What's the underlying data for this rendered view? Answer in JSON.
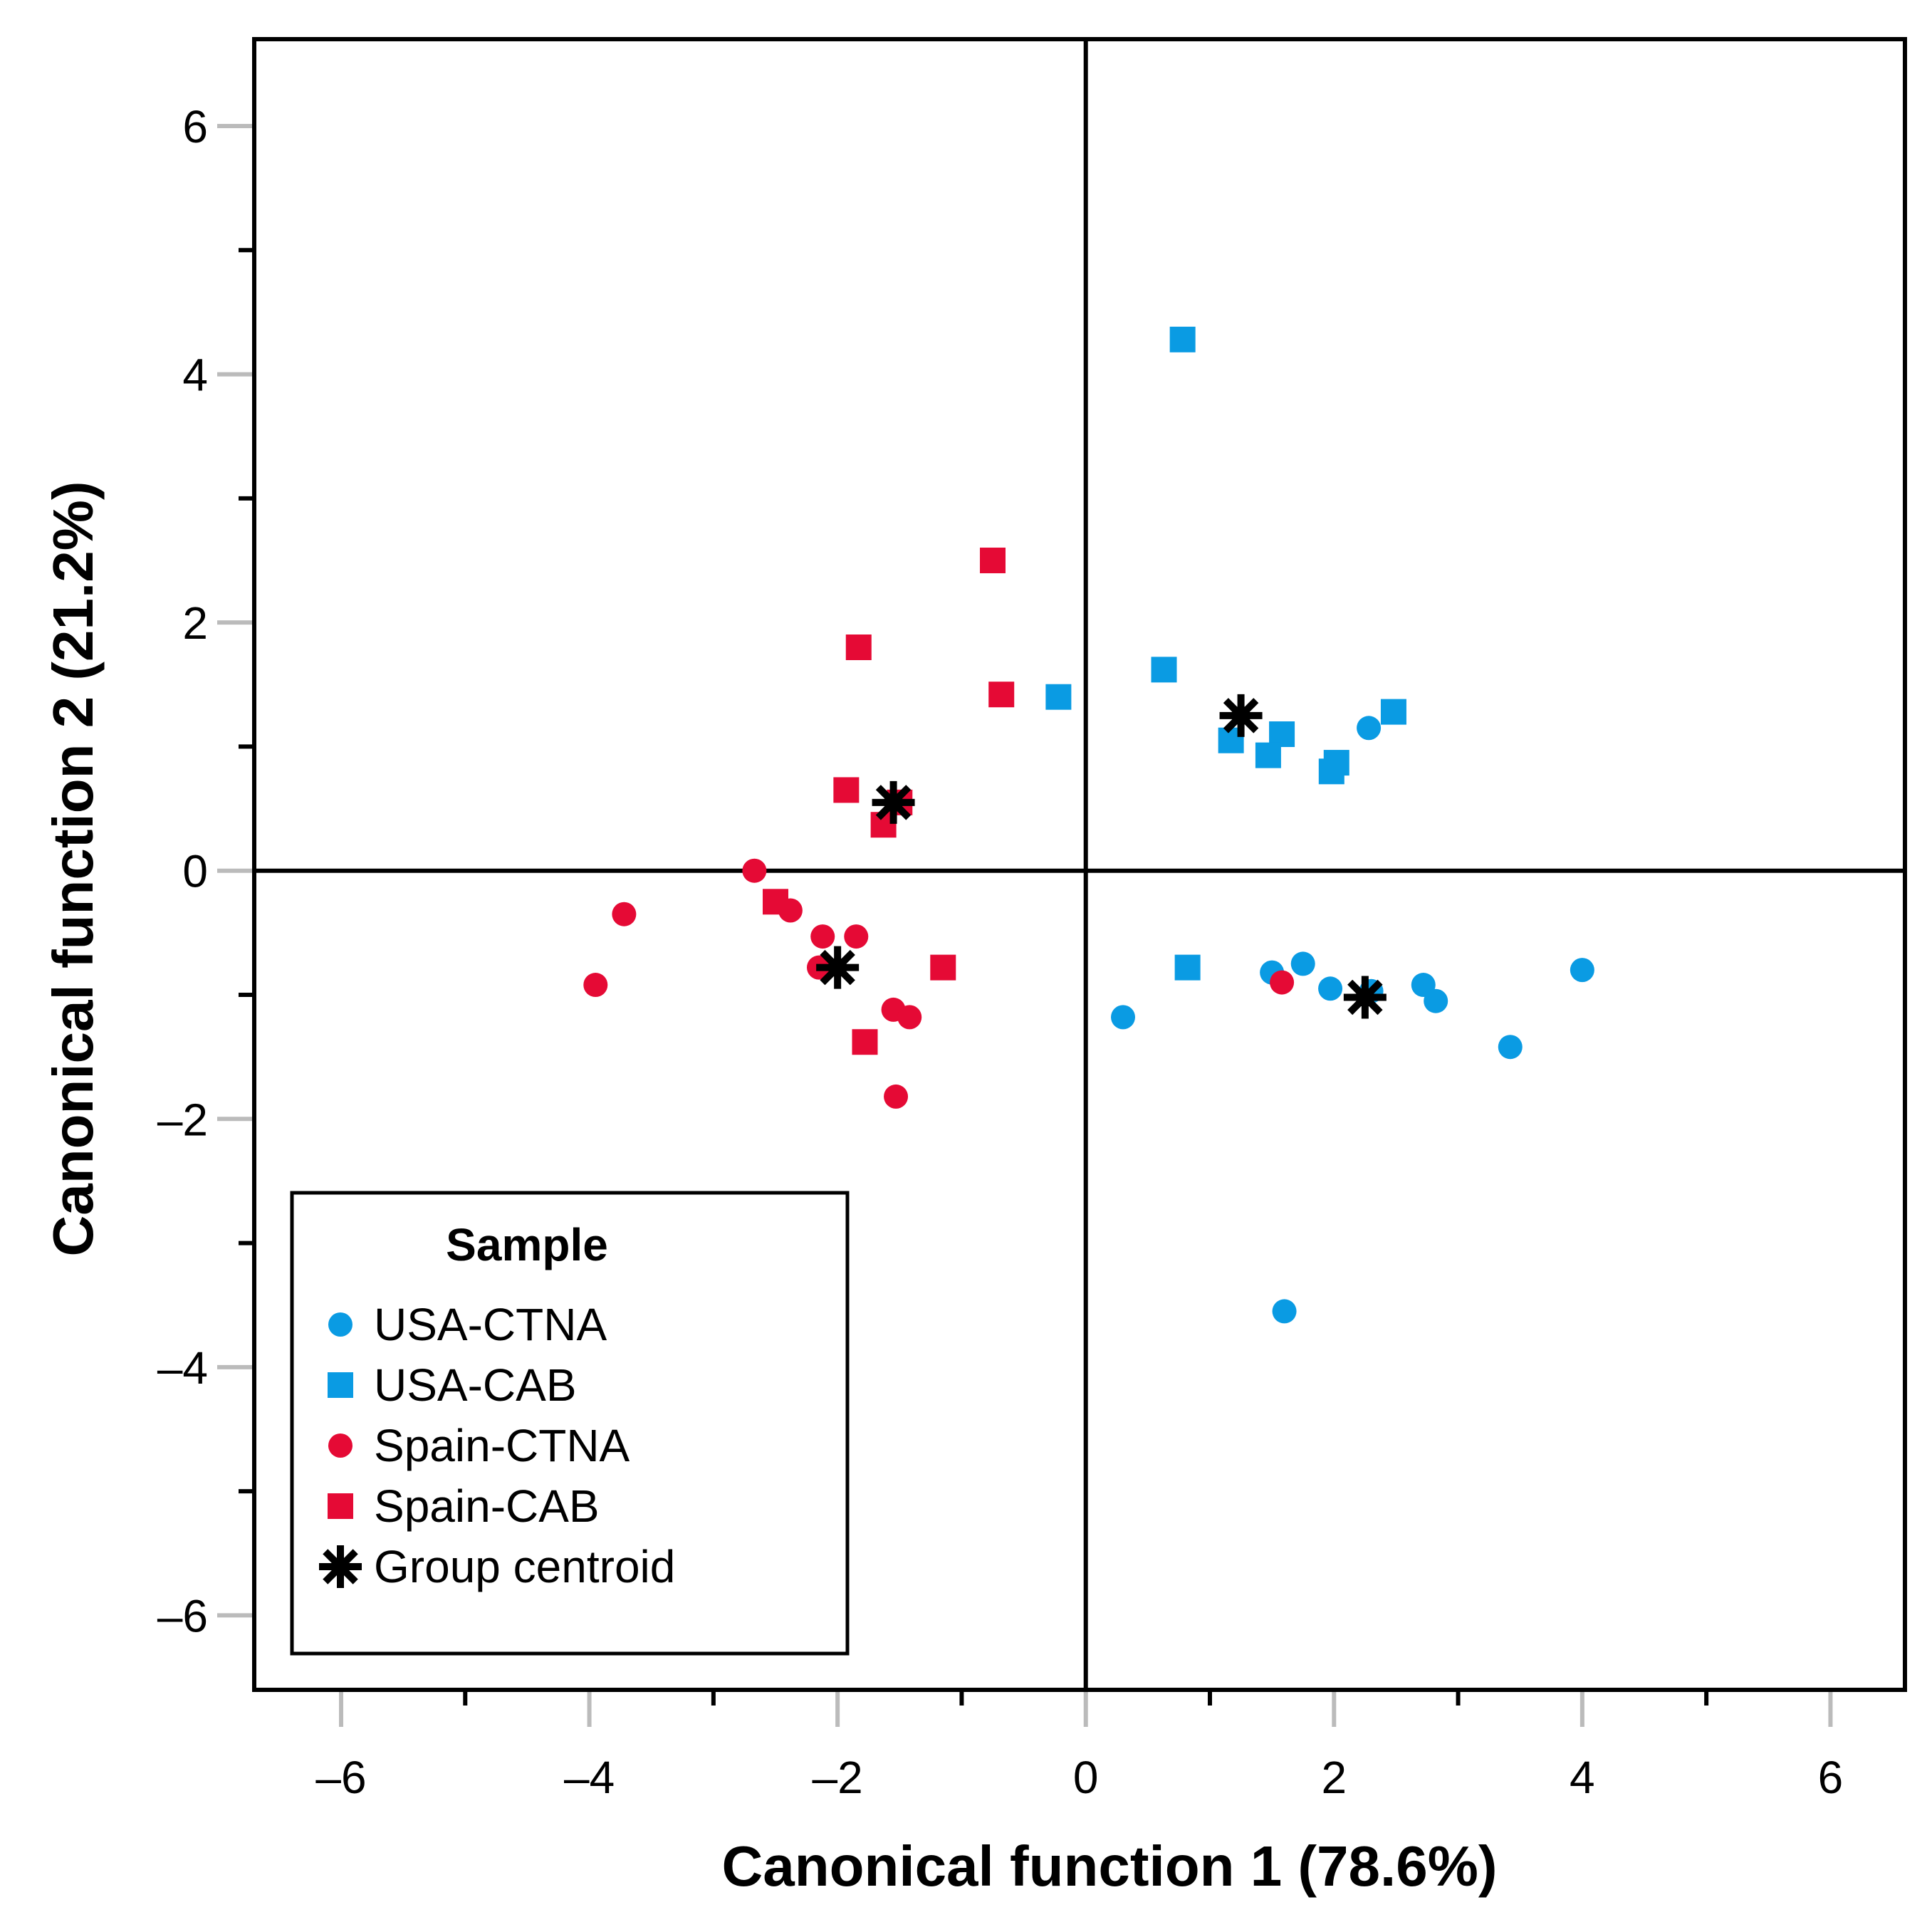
{
  "chart_data": {
    "type": "scatter",
    "xlabel": "Canonical function 1 (78.6%)",
    "ylabel": "Canonical function 2 (21.2%)",
    "xlim": [
      -6.7,
      6.6
    ],
    "ylim": [
      -6.6,
      6.7
    ],
    "xticks": [
      -6,
      -4,
      -2,
      0,
      2,
      4,
      6
    ],
    "yticks": [
      -6,
      -4,
      -2,
      0,
      2,
      4,
      6
    ],
    "xtick_labels": [
      "–6",
      "–4",
      "–2",
      "0",
      "2",
      "4",
      "6"
    ],
    "ytick_labels": [
      "–6",
      "–4",
      "–2",
      "0",
      "2",
      "4",
      "6"
    ],
    "zero_lines": true,
    "legend": {
      "title": "Sample",
      "position": "bottom-left"
    },
    "series": [
      {
        "name": "USA-CTNA",
        "marker": "circle",
        "color": "#0a9be3",
        "points": [
          [
            0.3,
            -1.18
          ],
          [
            1.5,
            -0.82
          ],
          [
            1.75,
            -0.75
          ],
          [
            1.97,
            -0.95
          ],
          [
            2.3,
            -0.97
          ],
          [
            2.72,
            -0.92
          ],
          [
            2.82,
            -1.05
          ],
          [
            3.42,
            -1.42
          ],
          [
            4.0,
            -0.8
          ],
          [
            2.28,
            1.15
          ],
          [
            1.6,
            -3.55
          ]
        ]
      },
      {
        "name": "USA-CAB",
        "marker": "square",
        "color": "#0a9be3",
        "points": [
          [
            0.78,
            4.28
          ],
          [
            0.63,
            1.62
          ],
          [
            -0.22,
            1.4
          ],
          [
            1.17,
            1.05
          ],
          [
            1.58,
            1.1
          ],
          [
            1.47,
            0.93
          ],
          [
            2.02,
            0.87
          ],
          [
            1.98,
            0.8
          ],
          [
            2.48,
            1.28
          ],
          [
            0.82,
            -0.78
          ]
        ]
      },
      {
        "name": "Spain-CTNA",
        "marker": "circle",
        "color": "#e50a35",
        "points": [
          [
            -2.67,
            0.0
          ],
          [
            -3.72,
            -0.35
          ],
          [
            -3.95,
            -0.92
          ],
          [
            -2.38,
            -0.32
          ],
          [
            -2.12,
            -0.53
          ],
          [
            -1.85,
            -0.53
          ],
          [
            -2.15,
            -0.78
          ],
          [
            -1.55,
            -1.12
          ],
          [
            -1.42,
            -1.18
          ],
          [
            -1.53,
            -1.82
          ],
          [
            1.58,
            -0.9
          ]
        ]
      },
      {
        "name": "Spain-CAB",
        "marker": "square",
        "color": "#e50a35",
        "points": [
          [
            -0.75,
            2.5
          ],
          [
            -1.83,
            1.8
          ],
          [
            -0.68,
            1.42
          ],
          [
            -1.93,
            0.65
          ],
          [
            -1.63,
            0.37
          ],
          [
            -1.5,
            0.55
          ],
          [
            -2.5,
            -0.25
          ],
          [
            -1.15,
            -0.78
          ],
          [
            -1.78,
            -1.38
          ]
        ]
      },
      {
        "name": "Group centroid",
        "marker": "star",
        "color": "#000000",
        "points": [
          [
            -1.55,
            0.55
          ],
          [
            1.25,
            1.25
          ],
          [
            -2.0,
            -0.78
          ],
          [
            2.25,
            -1.02
          ]
        ]
      }
    ]
  }
}
